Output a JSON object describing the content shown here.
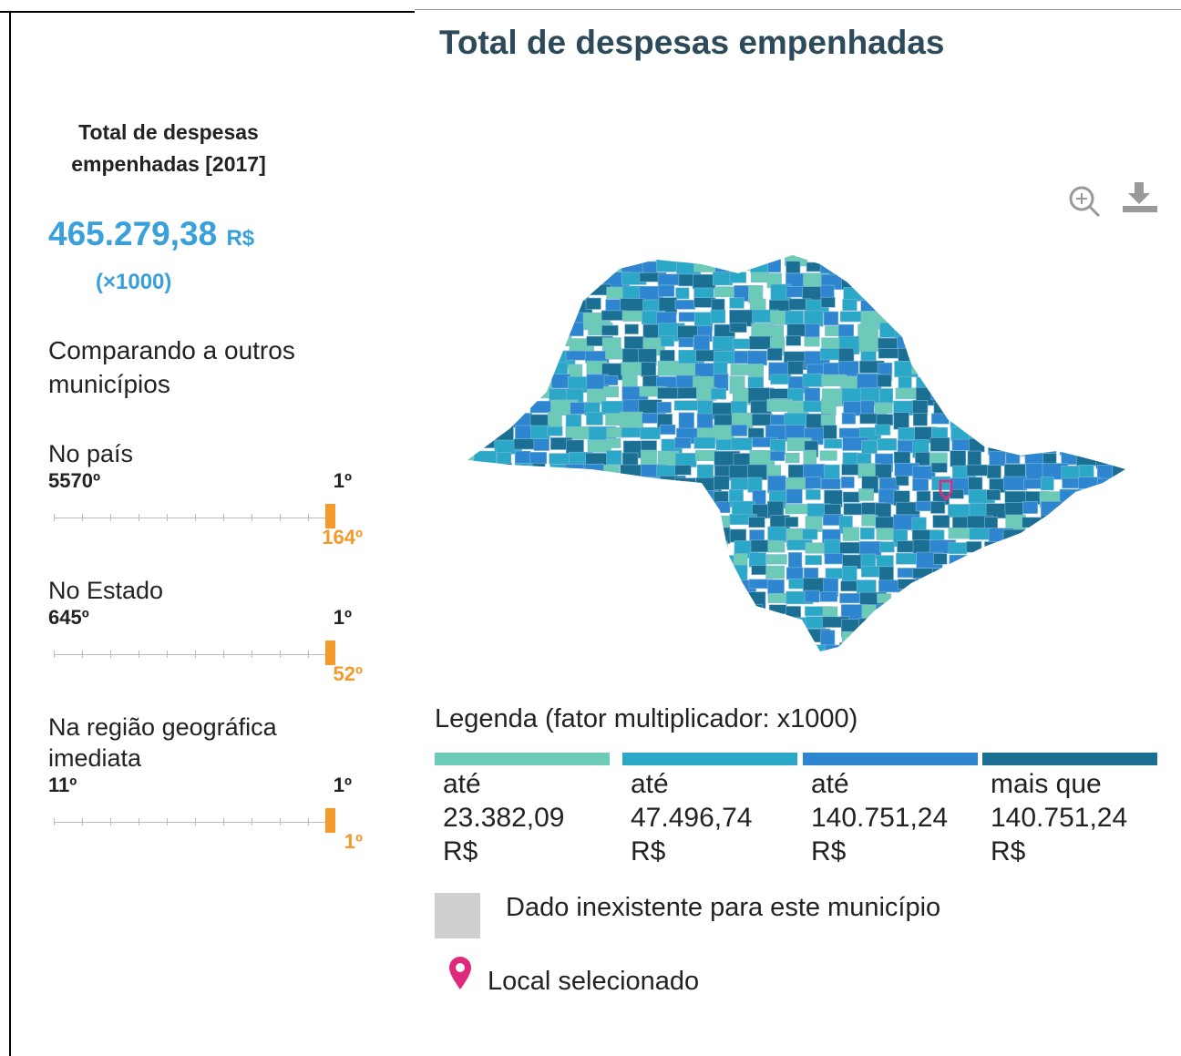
{
  "sidebar": {
    "title": "Total de despesas empenhadas [2017]",
    "value": "465.279,38",
    "unit": "R$",
    "multiplier": "(×1000)",
    "compare_heading": "Comparando a outros municípios",
    "rankings": [
      {
        "label": "No país",
        "min": "5570º",
        "max": "1º",
        "position": "164º"
      },
      {
        "label": "No Estado",
        "min": "645º",
        "max": "1º",
        "position": "52º"
      },
      {
        "label": "Na região geográfica imediata",
        "min": "11º",
        "max": "1º",
        "position": "1º"
      }
    ]
  },
  "map": {
    "title": "Total de despesas empenhadas",
    "legend_title": "Legenda (fator multiplicador: x1000)",
    "legend": [
      {
        "prefix": "até",
        "value": "23.382,09",
        "unit": "R$",
        "color": "#6ccbb7"
      },
      {
        "prefix": "até",
        "value": "47.496,74",
        "unit": "R$",
        "color": "#2ba8c8"
      },
      {
        "prefix": "até",
        "value": "140.751,24",
        "unit": "R$",
        "color": "#2f86d0"
      },
      {
        "prefix": "mais que",
        "value": "140.751,24",
        "unit": "R$",
        "color": "#1b6f92"
      }
    ],
    "missing": "Dado inexistente para este município",
    "selected": "Local selecionado"
  }
}
